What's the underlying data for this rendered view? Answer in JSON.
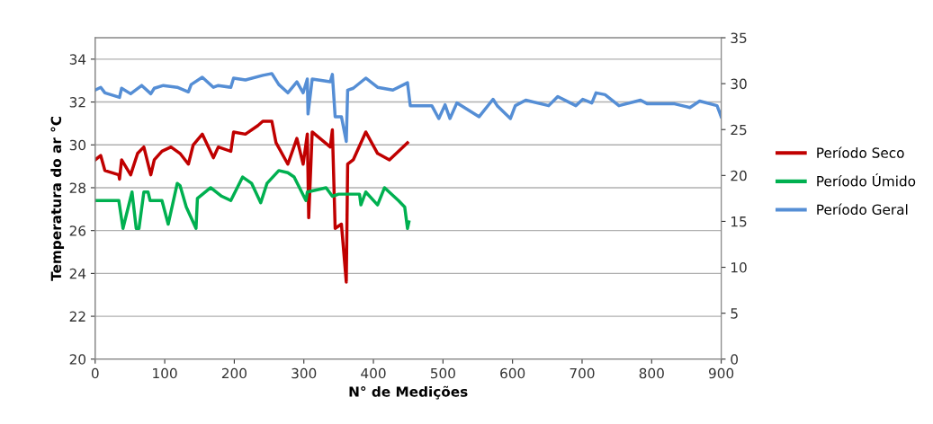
{
  "chart_data": {
    "type": "line",
    "xlabel": "N° de Medições",
    "ylabel": "Temperatura do ar °C",
    "xlim": [
      0,
      900
    ],
    "xticks": [
      0,
      100,
      200,
      300,
      400,
      500,
      600,
      700,
      800,
      900
    ],
    "ylim": [
      20,
      35
    ],
    "yticks": [
      20,
      22,
      24,
      26,
      28,
      30,
      32,
      34
    ],
    "y2lim": [
      0,
      35
    ],
    "y2ticks": [
      0,
      5,
      10,
      15,
      20,
      25,
      30,
      35
    ],
    "grid": "y",
    "legend": "right",
    "line_style": "solid",
    "marker": "none",
    "series": [
      {
        "name": "Período Seco",
        "color": "#c00000",
        "x": [
          0,
          8,
          14,
          34,
          35,
          38,
          51,
          61,
          70,
          80,
          85,
          96,
          109,
          122,
          134,
          141,
          154,
          170,
          177,
          195,
          199,
          216,
          234,
          241,
          254,
          260,
          277,
          290,
          299,
          305,
          307,
          312,
          338,
          341,
          345,
          354,
          361,
          363,
          371,
          389,
          406,
          423,
          436,
          449
        ],
        "values": [
          29.3,
          29.5,
          28.8,
          28.6,
          28.4,
          29.3,
          28.6,
          29.6,
          29.9,
          28.6,
          29.3,
          29.7,
          29.9,
          29.6,
          29.1,
          30.0,
          30.5,
          29.4,
          29.9,
          29.7,
          30.6,
          30.5,
          30.9,
          31.1,
          31.1,
          30.1,
          29.1,
          30.3,
          29.1,
          30.5,
          26.6,
          30.6,
          29.9,
          30.7,
          26.1,
          26.3,
          23.6,
          29.1,
          29.3,
          30.6,
          29.6,
          29.3,
          29.7,
          30.1
        ]
      },
      {
        "name": "Período Úmido",
        "color": "#00b050",
        "x": [
          0,
          34,
          40,
          53,
          59,
          63,
          70,
          76,
          79,
          96,
          105,
          118,
          122,
          131,
          145,
          147,
          166,
          182,
          195,
          212,
          225,
          238,
          247,
          264,
          277,
          286,
          303,
          305,
          332,
          341,
          350,
          380,
          382,
          389,
          406,
          416,
          436,
          445,
          449,
          451
        ],
        "values": [
          27.4,
          27.4,
          26.1,
          27.8,
          26.1,
          26.1,
          27.8,
          27.8,
          27.4,
          27.4,
          26.3,
          28.2,
          28.1,
          27.1,
          26.1,
          27.5,
          28.0,
          27.6,
          27.4,
          28.5,
          28.2,
          27.3,
          28.2,
          28.8,
          28.7,
          28.5,
          27.4,
          27.8,
          28.0,
          27.6,
          27.7,
          27.7,
          27.2,
          27.8,
          27.2,
          28.0,
          27.4,
          27.1,
          26.1,
          26.4
        ]
      },
      {
        "name": "Período Geral",
        "color": "#558ed5",
        "axis": "y2",
        "x": [
          0,
          8,
          14,
          35,
          38,
          51,
          67,
          80,
          85,
          98,
          118,
          134,
          138,
          154,
          170,
          177,
          195,
          199,
          216,
          241,
          254,
          264,
          277,
          290,
          299,
          305,
          306,
          312,
          338,
          341,
          345,
          354,
          361,
          363,
          371,
          389,
          406,
          428,
          449,
          453,
          484,
          494,
          503,
          510,
          520,
          552,
          572,
          578,
          597,
          604,
          619,
          652,
          665,
          691,
          701,
          714,
          720,
          733,
          753,
          784,
          794,
          833,
          855,
          869,
          894,
          900
        ],
        "values": [
          29.3,
          29.6,
          29.0,
          28.5,
          29.5,
          28.9,
          29.8,
          28.9,
          29.5,
          29.8,
          29.6,
          29.1,
          29.9,
          30.7,
          29.6,
          29.8,
          29.6,
          30.6,
          30.4,
          30.9,
          31.1,
          29.9,
          29.0,
          30.2,
          29.0,
          30.5,
          26.7,
          30.5,
          30.2,
          31.0,
          26.4,
          26.4,
          23.7,
          29.3,
          29.5,
          30.6,
          29.6,
          29.3,
          30.1,
          27.6,
          27.6,
          26.2,
          27.7,
          26.2,
          27.9,
          26.4,
          28.3,
          27.6,
          26.2,
          27.6,
          28.2,
          27.6,
          28.6,
          27.6,
          28.3,
          27.9,
          29.0,
          28.8,
          27.6,
          28.2,
          27.8,
          27.8,
          27.4,
          28.1,
          27.6,
          26.4
        ]
      }
    ]
  }
}
